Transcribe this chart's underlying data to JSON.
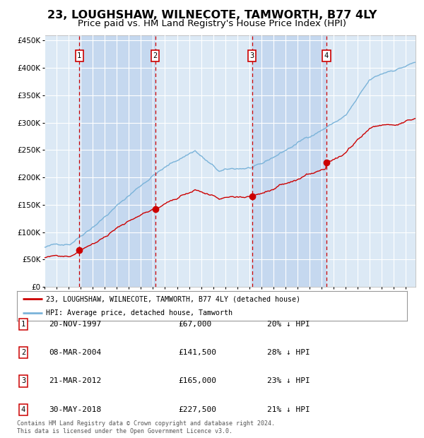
{
  "title": "23, LOUGHSHAW, WILNECOTE, TAMWORTH, B77 4LY",
  "subtitle": "Price paid vs. HM Land Registry's House Price Index (HPI)",
  "legend_label_red": "23, LOUGHSHAW, WILNECOTE, TAMWORTH, B77 4LY (detached house)",
  "legend_label_blue": "HPI: Average price, detached house, Tamworth",
  "footer_line1": "Contains HM Land Registry data © Crown copyright and database right 2024.",
  "footer_line2": "This data is licensed under the Open Government Licence v3.0.",
  "transactions": [
    {
      "num": 1,
      "date": "20-NOV-1997",
      "price": 67000,
      "pct": "20%",
      "dir": "↓"
    },
    {
      "num": 2,
      "date": "08-MAR-2004",
      "price": 141500,
      "pct": "28%",
      "dir": "↓"
    },
    {
      "num": 3,
      "date": "21-MAR-2012",
      "price": 165000,
      "pct": "23%",
      "dir": "↓"
    },
    {
      "num": 4,
      "date": "30-MAY-2018",
      "price": 227500,
      "pct": "21%",
      "dir": "↓"
    }
  ],
  "date_num_1": 1997.89,
  "date_num_2": 2004.19,
  "date_num_3": 2012.22,
  "date_num_4": 2018.41,
  "ylim": [
    0,
    460000
  ],
  "xlim_start": 1995.0,
  "xlim_end": 2025.8,
  "background_color": "#ffffff",
  "plot_bg_color": "#dce9f5",
  "plot_bg_color2": "#c5d8ef",
  "grid_color": "#ffffff",
  "hpi_line_color": "#7ab3d9",
  "price_line_color": "#cc0000",
  "vline_color": "#cc0000",
  "box_edge_color": "#cc0000",
  "title_fontsize": 11.5,
  "subtitle_fontsize": 9.5
}
